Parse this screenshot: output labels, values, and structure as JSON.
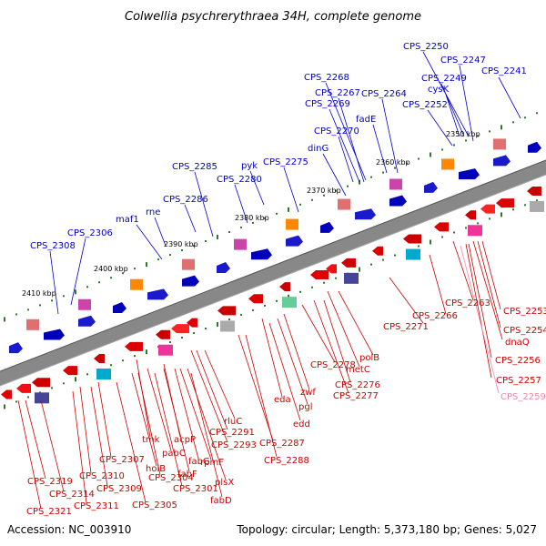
{
  "title": "Colwellia psychrerythraea 34H, complete genome",
  "footer": {
    "accession": "Accession: NC_003910",
    "summary": "Topology: circular; Length: 5,373,180 bp; Genes: 5,027"
  },
  "kbp_labels": [
    "2350 kbp",
    "2360 kbp",
    "2370 kbp",
    "2380 kbp",
    "2390 kbp",
    "2400 kbp",
    "2410 kbp"
  ],
  "top_labels": [
    "CPS_2250",
    "CPS_2247",
    "CPS_2241",
    "CPS_2249",
    "cysK",
    "CPS_2252",
    "CPS_2268",
    "CPS_2267",
    "CPS_2264",
    "CPS_2269",
    "fadE",
    "CPS_2270",
    "dinG",
    "pyk",
    "CPS_2275",
    "CPS_2285",
    "CPS_2280",
    "CPS_2286",
    "rne",
    "maf1",
    "CPS_2306",
    "CPS_2308"
  ],
  "bottom_labels": [
    "CPS_2253",
    "CPS_2254",
    "dnaQ",
    "CPS_2256",
    "CPS_2257",
    "CPS_2259",
    "CPS_2263",
    "CPS_2266",
    "CPS_2271",
    "polB",
    "metC",
    "CPS_2278",
    "CPS_2276",
    "CPS_2277",
    "zwf",
    "eda",
    "pgl",
    "edd",
    "rluC",
    "CPS_2291",
    "CPS_2293",
    "CPS_2287",
    "CPS_2288",
    "tmk",
    "acpP",
    "rpmF",
    "plsX",
    "fabD",
    "pabC",
    "fabG",
    "fabF",
    "holB",
    "CPS_2304",
    "CPS_2301",
    "CPS_2305",
    "CPS_2307",
    "CPS_2310",
    "CPS_2309",
    "CPS_2311",
    "CPS_2319",
    "CPS_2314",
    "CPS_2321"
  ],
  "colors": {
    "forward": "#0000cc",
    "reverse": "#cc0000",
    "pseudo": "#ee88aa",
    "backbone": "#888888"
  }
}
